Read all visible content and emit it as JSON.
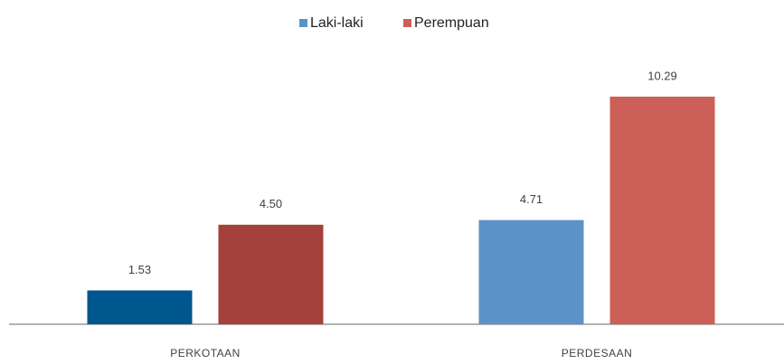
{
  "chart_data": {
    "type": "bar",
    "categories": [
      "PERKOTAAN",
      "PERDESAAN"
    ],
    "series": [
      {
        "name": "Laki-laki",
        "color": "#5b93c9",
        "colors": [
          "#00568f",
          "#5b93c9"
        ],
        "values": [
          1.53,
          4.71
        ],
        "value_labels": [
          "1.53",
          "4.71"
        ]
      },
      {
        "name": "Perempuan",
        "color": "#cc5f58",
        "colors": [
          "#a5403a",
          "#cc5f58"
        ],
        "values": [
          4.5,
          10.29
        ],
        "value_labels": [
          "4.50",
          "10.29"
        ]
      }
    ],
    "legend": "top"
  }
}
